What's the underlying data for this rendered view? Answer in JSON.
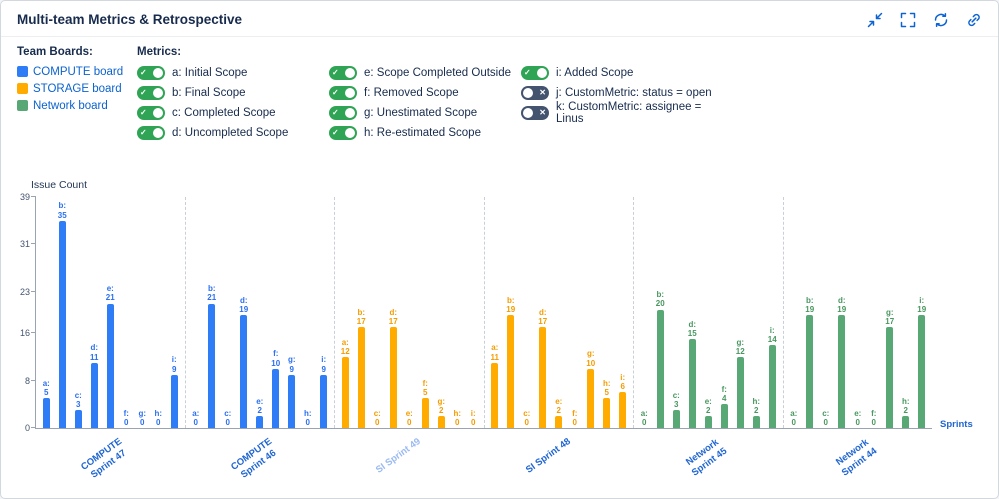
{
  "header": {
    "title": "Multi-team Metrics & Retrospective",
    "icons": [
      "collapse",
      "fullscreen",
      "refresh",
      "link"
    ]
  },
  "team_boards": {
    "title": "Team Boards:",
    "items": [
      {
        "label": "COMPUTE board",
        "color": "#2E7CF6"
      },
      {
        "label": "STORAGE board",
        "color": "#FFAB00"
      },
      {
        "label": "Network board",
        "color": "#57A874"
      }
    ]
  },
  "metrics": {
    "title": "Metrics:",
    "toggle_on_color": "#2FA455",
    "toggle_off_color": "#44546F",
    "columns": [
      [
        {
          "label": "a: Initial Scope",
          "on": true
        },
        {
          "label": "b: Final Scope",
          "on": true
        },
        {
          "label": "c: Completed Scope",
          "on": true
        },
        {
          "label": "d: Uncompleted Scope",
          "on": true
        }
      ],
      [
        {
          "label": "e: Scope Completed Outside",
          "on": true
        },
        {
          "label": "f: Removed Scope",
          "on": true
        },
        {
          "label": "g: Unestimated Scope",
          "on": true
        },
        {
          "label": "h: Re-estimated Scope",
          "on": true
        }
      ],
      [
        {
          "label": "i: Added Scope",
          "on": true
        },
        {
          "label": "j: CustomMetric: status = open",
          "on": false
        },
        {
          "label": "k: CustomMetric: assignee = Linus",
          "on": false
        }
      ]
    ]
  },
  "chart_data": {
    "type": "bar",
    "title": "",
    "ylabel": "Issue Count",
    "xlabel": "Sprints",
    "ymax": 39,
    "y_ticks": [
      0,
      8,
      16,
      23,
      31,
      39
    ],
    "metric_keys": [
      "a",
      "b",
      "c",
      "d",
      "e",
      "f",
      "g",
      "h",
      "i"
    ],
    "colors": {
      "COMPUTE": "#2E7CF6",
      "STORAGE": "#FFAB00",
      "Network": "#57A874"
    },
    "label_colors": {
      "COMPUTE": "#2A6FF0",
      "STORAGE": "#F59B00",
      "Network": "#47975F"
    },
    "axis_label_color": "#2066D2",
    "axis_label_muted_color": "#9BBAF2",
    "groups": [
      {
        "sprint": "COMPUTE Sprint 47",
        "label_lines": [
          "COMPUTE",
          "Sprint 47"
        ],
        "board": "COMPUTE",
        "muted_label": false,
        "values": {
          "a": 5,
          "b": 35,
          "c": 3,
          "d": 11,
          "e": 21,
          "f": 0,
          "g": 0,
          "h": 0,
          "i": 9
        }
      },
      {
        "sprint": "COMPUTE Sprint 46",
        "label_lines": [
          "COMPUTE",
          "Sprint 46"
        ],
        "board": "COMPUTE",
        "muted_label": false,
        "values": {
          "a": 0,
          "b": 21,
          "c": 0,
          "d": 19,
          "e": 2,
          "f": 10,
          "g": 9,
          "h": 0,
          "i": 9
        }
      },
      {
        "sprint": "SI Sprint 49",
        "label_lines": [
          "SI Sprint 49"
        ],
        "board": "STORAGE",
        "muted_label": true,
        "values": {
          "a": 12,
          "b": 17,
          "c": 0,
          "d": 17,
          "e": 0,
          "f": 5,
          "g": 2,
          "h": 0,
          "i": 0
        }
      },
      {
        "sprint": "SI Sprint 48",
        "label_lines": [
          "SI Sprint 48"
        ],
        "board": "STORAGE",
        "muted_label": false,
        "values": {
          "a": 11,
          "b": 19,
          "c": 0,
          "d": 17,
          "e": 2,
          "f": 0,
          "g": 10,
          "h": 5,
          "i": 6
        }
      },
      {
        "sprint": "Network Sprint 45",
        "label_lines": [
          "Network",
          "Sprint 45"
        ],
        "board": "Network",
        "muted_label": false,
        "values": {
          "a": 0,
          "b": 20,
          "c": 3,
          "d": 15,
          "e": 2,
          "f": 4,
          "g": 12,
          "h": 2,
          "i": 14
        }
      },
      {
        "sprint": "Network Sprint 44",
        "label_lines": [
          "Network",
          "Sprint 44"
        ],
        "board": "Network",
        "muted_label": false,
        "values": {
          "a": 0,
          "b": 19,
          "c": 0,
          "d": 19,
          "e": 0,
          "f": 0,
          "g": 17,
          "h": 2,
          "i": 19
        }
      }
    ]
  }
}
